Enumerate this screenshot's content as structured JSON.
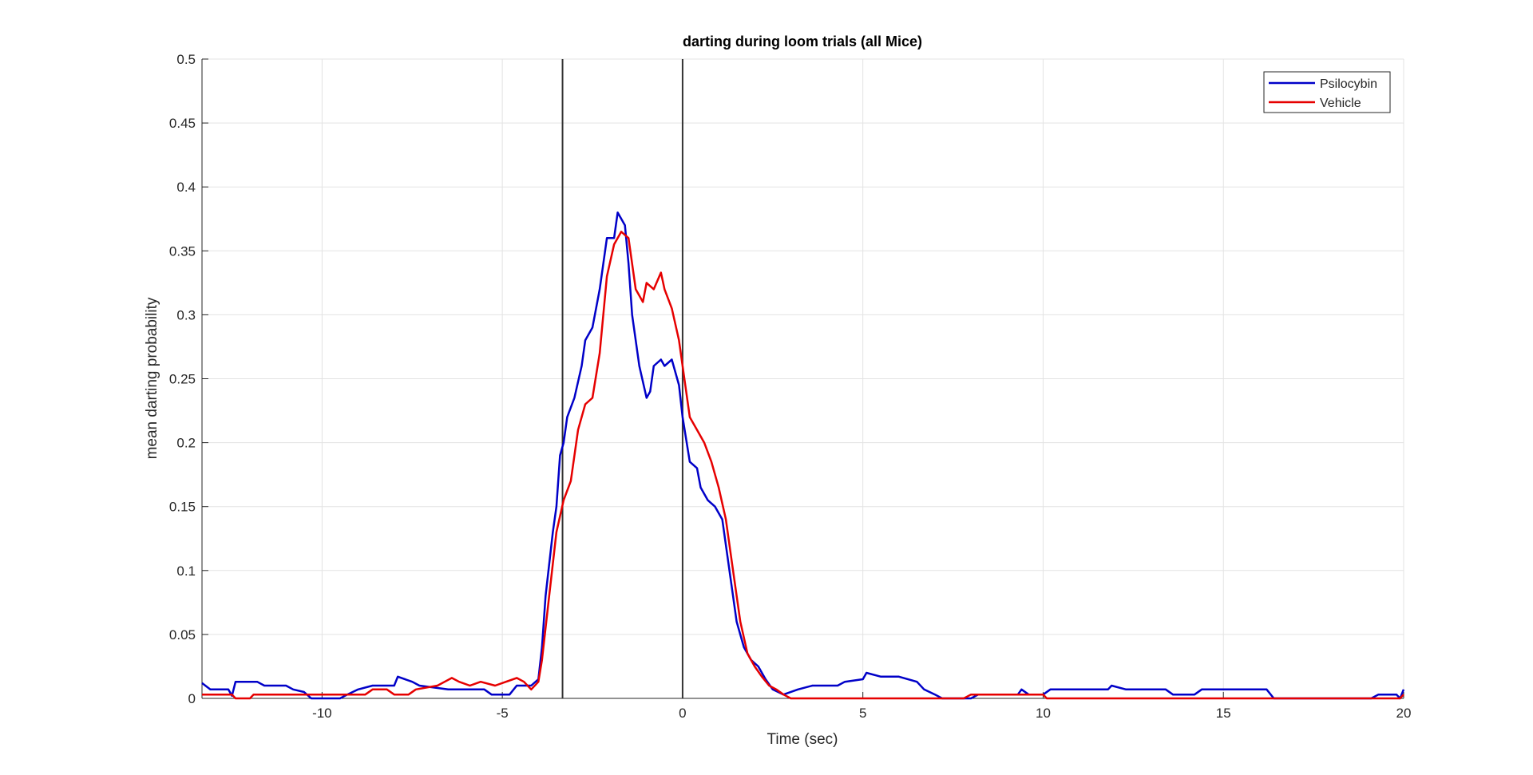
{
  "chart_data": {
    "type": "line",
    "title": "darting during loom trials (all Mice)",
    "xlabel": "Time (sec)",
    "ylabel": "mean darting probability",
    "xlim": [
      -13.33,
      20
    ],
    "xticks": [
      -10,
      -5,
      0,
      5,
      10,
      15,
      20
    ],
    "ylim": [
      0,
      0.5
    ],
    "yticks": [
      0,
      0.05,
      0.1,
      0.15,
      0.2,
      0.25,
      0.3,
      0.35,
      0.4,
      0.45,
      0.5
    ],
    "grid": true,
    "legend": "top-right",
    "vlines": [
      -3.33,
      0
    ],
    "series": [
      {
        "name": "Psilocybin",
        "color": "#0000c8",
        "x": [
          -13.33,
          -13.1,
          -12.6,
          -12.5,
          -12.4,
          -11.8,
          -11.6,
          -11.0,
          -10.8,
          -10.5,
          -10.3,
          -9.5,
          -9.3,
          -9.0,
          -8.6,
          -8.0,
          -7.9,
          -7.5,
          -7.3,
          -6.5,
          -5.5,
          -5.3,
          -4.8,
          -4.6,
          -4.2,
          -4.0,
          -3.9,
          -3.8,
          -3.6,
          -3.5,
          -3.4,
          -3.3,
          -3.2,
          -3.0,
          -2.8,
          -2.7,
          -2.5,
          -2.3,
          -2.1,
          -1.9,
          -1.8,
          -1.6,
          -1.5,
          -1.4,
          -1.2,
          -1.0,
          -0.9,
          -0.8,
          -0.6,
          -0.5,
          -0.3,
          -0.1,
          0.0,
          0.2,
          0.4,
          0.5,
          0.7,
          0.9,
          1.1,
          1.3,
          1.5,
          1.7,
          1.9,
          2.1,
          2.3,
          2.5,
          2.8,
          3.2,
          3.6,
          4.3,
          4.5,
          5.0,
          5.1,
          5.5,
          6.0,
          6.5,
          6.7,
          7.0,
          7.2,
          8.0,
          8.2,
          9.3,
          9.4,
          9.6,
          10.0,
          10.2,
          11.8,
          11.9,
          12.3,
          13.4,
          13.6,
          14.2,
          14.4,
          16.2,
          16.4,
          19.1,
          19.3,
          19.8,
          19.9,
          20
        ],
        "values": [
          0.012,
          0.007,
          0.007,
          0.002,
          0.013,
          0.013,
          0.01,
          0.01,
          0.007,
          0.005,
          0.0,
          0.0,
          0.003,
          0.007,
          0.01,
          0.01,
          0.017,
          0.013,
          0.01,
          0.007,
          0.007,
          0.003,
          0.003,
          0.01,
          0.01,
          0.015,
          0.04,
          0.08,
          0.13,
          0.15,
          0.19,
          0.2,
          0.22,
          0.235,
          0.26,
          0.28,
          0.29,
          0.32,
          0.36,
          0.36,
          0.38,
          0.37,
          0.34,
          0.3,
          0.26,
          0.235,
          0.24,
          0.26,
          0.265,
          0.26,
          0.265,
          0.245,
          0.22,
          0.185,
          0.18,
          0.165,
          0.155,
          0.15,
          0.14,
          0.1,
          0.06,
          0.04,
          0.03,
          0.025,
          0.015,
          0.007,
          0.003,
          0.007,
          0.01,
          0.01,
          0.013,
          0.015,
          0.02,
          0.017,
          0.017,
          0.013,
          0.007,
          0.003,
          0.0,
          0.0,
          0.003,
          0.003,
          0.007,
          0.003,
          0.003,
          0.007,
          0.007,
          0.01,
          0.007,
          0.007,
          0.003,
          0.003,
          0.007,
          0.007,
          0.0,
          0.0,
          0.003,
          0.003,
          0.0,
          0.007
        ]
      },
      {
        "name": "Vehicle",
        "color": "#e60000",
        "x": [
          -13.33,
          -12.5,
          -12.4,
          -12.0,
          -11.9,
          -8.8,
          -8.6,
          -8.2,
          -8.0,
          -7.6,
          -7.4,
          -6.8,
          -6.6,
          -6.4,
          -6.2,
          -5.9,
          -5.6,
          -5.2,
          -4.9,
          -4.6,
          -4.4,
          -4.2,
          -4.0,
          -3.9,
          -3.7,
          -3.5,
          -3.3,
          -3.1,
          -2.9,
          -2.7,
          -2.5,
          -2.3,
          -2.1,
          -1.9,
          -1.7,
          -1.5,
          -1.3,
          -1.1,
          -1.0,
          -0.8,
          -0.6,
          -0.5,
          -0.3,
          -0.1,
          0.0,
          0.1,
          0.2,
          0.4,
          0.6,
          0.8,
          1.0,
          1.2,
          1.4,
          1.6,
          1.8,
          2.0,
          2.2,
          2.4,
          2.6,
          2.8,
          3.0,
          7.8,
          8.0,
          10.0,
          10.1,
          19.9,
          20
        ],
        "values": [
          0.003,
          0.003,
          0.0,
          0.0,
          0.003,
          0.003,
          0.007,
          0.007,
          0.003,
          0.003,
          0.007,
          0.01,
          0.013,
          0.016,
          0.013,
          0.01,
          0.013,
          0.01,
          0.013,
          0.016,
          0.013,
          0.007,
          0.013,
          0.03,
          0.08,
          0.13,
          0.155,
          0.17,
          0.21,
          0.23,
          0.235,
          0.27,
          0.33,
          0.355,
          0.365,
          0.36,
          0.32,
          0.31,
          0.325,
          0.32,
          0.333,
          0.32,
          0.305,
          0.28,
          0.26,
          0.24,
          0.22,
          0.21,
          0.2,
          0.185,
          0.165,
          0.14,
          0.1,
          0.06,
          0.035,
          0.025,
          0.017,
          0.01,
          0.007,
          0.003,
          0.0,
          0.0,
          0.003,
          0.003,
          0.0,
          0.0,
          0.003
        ]
      }
    ]
  }
}
